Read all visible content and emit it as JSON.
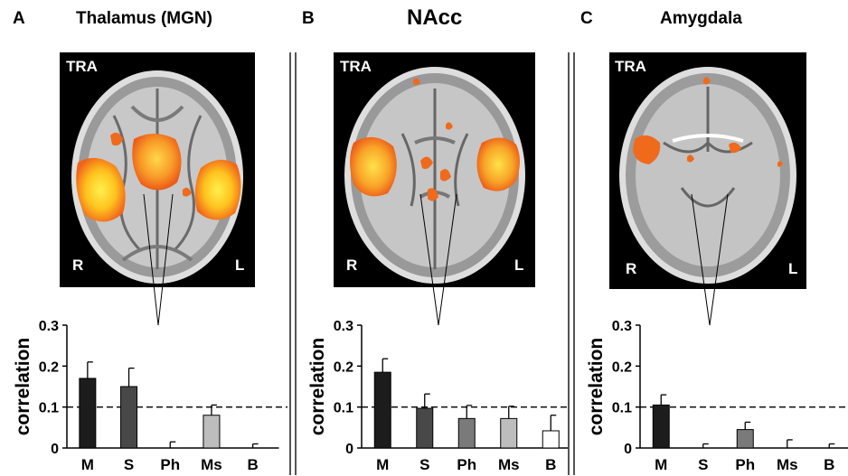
{
  "colors": {
    "activation_inner": "#ffe24a",
    "activation_outer": "#f36a1c",
    "background": "#ffffff"
  },
  "panels": [
    {
      "letter": "A",
      "title": "Thalamus (MGN)",
      "brain": {
        "view": "TRA",
        "right": "R",
        "left": "L"
      }
    },
    {
      "letter": "B",
      "title": "NAcc",
      "brain": {
        "view": "TRA",
        "right": "R",
        "left": "L"
      }
    },
    {
      "letter": "C",
      "title": "Amygdala",
      "brain": {
        "view": "TRA",
        "right": "R",
        "left": "L"
      }
    }
  ],
  "chart_data": [
    {
      "type": "bar",
      "title": "Thalamus (MGN)",
      "ylabel": "correlation",
      "categories": [
        "M",
        "S",
        "Ph",
        "Ms",
        "B"
      ],
      "values": [
        0.17,
        0.15,
        0.0,
        0.08,
        0.0
      ],
      "errors": [
        0.04,
        0.045,
        0.015,
        0.025,
        0.01
      ],
      "bar_colors": [
        "#1c1c1c",
        "#484848",
        "#7a7a7a",
        "#bdbdbd",
        "#ffffff"
      ],
      "ylim": [
        0,
        0.3
      ],
      "yticks": [
        "0",
        "0.1",
        "0.2",
        "0.3"
      ],
      "threshold": 0.1
    },
    {
      "type": "bar",
      "title": "NAcc",
      "ylabel": "correlation",
      "categories": [
        "M",
        "S",
        "Ph",
        "Ms",
        "B"
      ],
      "values": [
        0.185,
        0.097,
        0.072,
        0.072,
        0.042
      ],
      "errors": [
        0.033,
        0.035,
        0.032,
        0.03,
        0.038
      ],
      "bar_colors": [
        "#1c1c1c",
        "#484848",
        "#7a7a7a",
        "#bdbdbd",
        "#ffffff"
      ],
      "ylim": [
        0,
        0.3
      ],
      "yticks": [
        "0",
        "0.1",
        "0.2",
        "0.3"
      ],
      "threshold": 0.1
    },
    {
      "type": "bar",
      "title": "Amygdala",
      "ylabel": "correlation",
      "categories": [
        "M",
        "S",
        "Ph",
        "Ms",
        "B"
      ],
      "values": [
        0.105,
        0.0,
        0.045,
        0.0,
        0.0
      ],
      "errors": [
        0.025,
        0.01,
        0.018,
        0.02,
        0.01
      ],
      "bar_colors": [
        "#1c1c1c",
        "#484848",
        "#7a7a7a",
        "#bdbdbd",
        "#ffffff"
      ],
      "ylim": [
        0,
        0.3
      ],
      "yticks": [
        "0",
        "0.1",
        "0.2",
        "0.3"
      ],
      "threshold": 0.1
    }
  ]
}
